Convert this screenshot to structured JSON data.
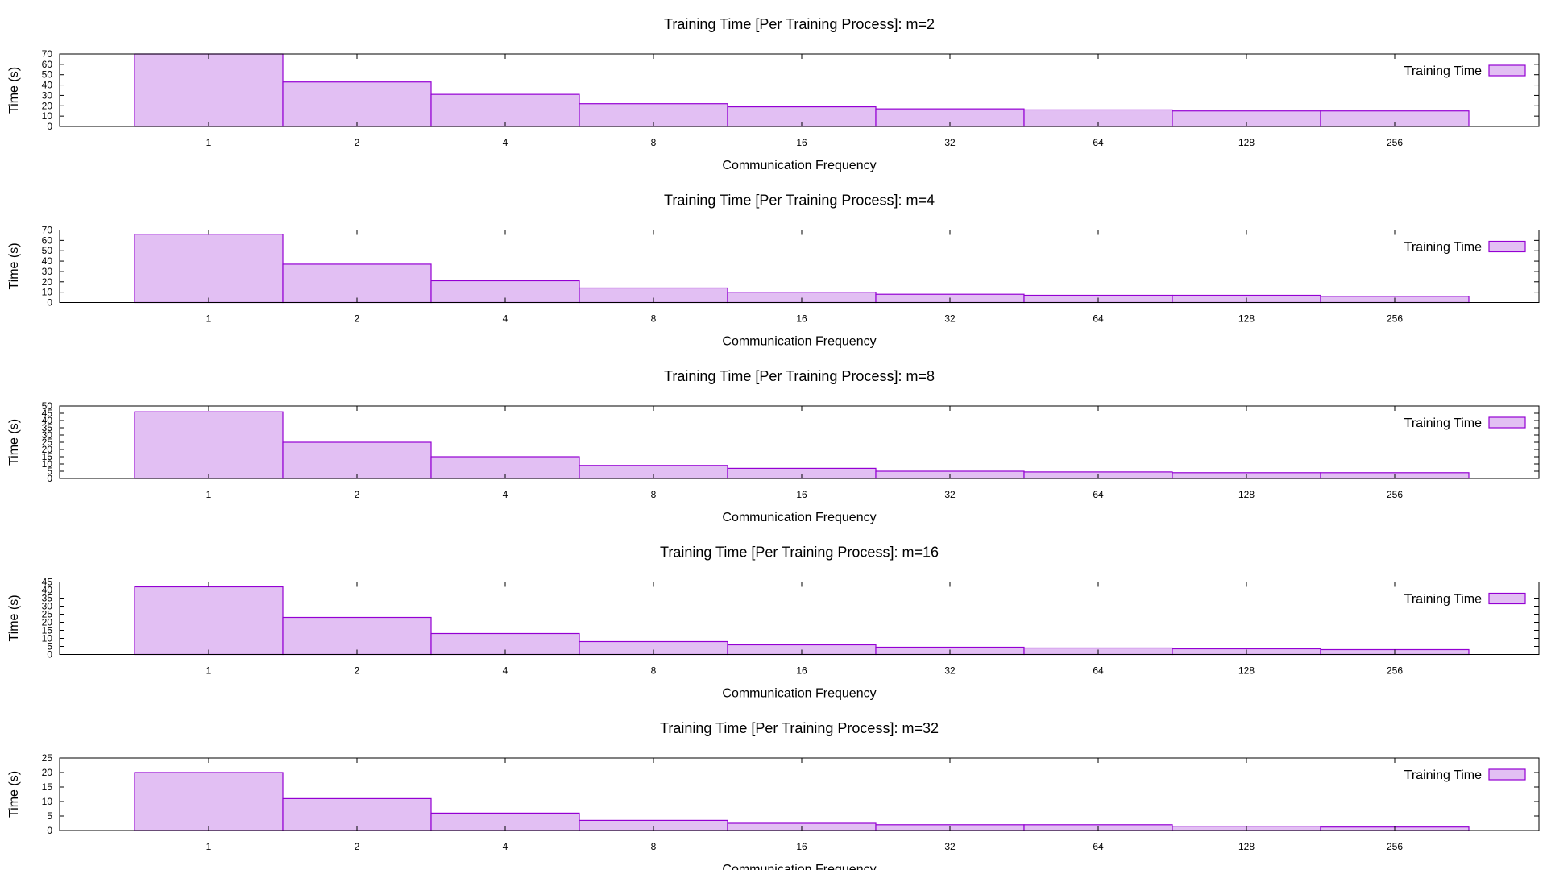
{
  "colors": {
    "bar_fill": "#e2bff3",
    "bar_stroke": "#9400d3",
    "axis": "#000000",
    "background": "#ffffff"
  },
  "chart_data": [
    {
      "type": "bar",
      "title": "Training Time [Per Training Process]: m=2",
      "xlabel": "Communication Frequency",
      "ylabel": "Time (s)",
      "categories": [
        "1",
        "2",
        "4",
        "8",
        "16",
        "32",
        "64",
        "128",
        "256"
      ],
      "series": [
        {
          "name": "Training Time",
          "values": [
            70,
            43,
            31,
            22,
            19,
            17,
            16,
            15,
            15
          ]
        }
      ],
      "ylim": [
        0,
        70
      ],
      "yticks": [
        "0",
        "10",
        "20",
        "30",
        "40",
        "50",
        "60",
        "70"
      ],
      "legend": "top-right",
      "grid": false
    },
    {
      "type": "bar",
      "title": "Training Time [Per Training Process]: m=4",
      "xlabel": "Communication Frequency",
      "ylabel": "Time (s)",
      "categories": [
        "1",
        "2",
        "4",
        "8",
        "16",
        "32",
        "64",
        "128",
        "256"
      ],
      "series": [
        {
          "name": "Training Time",
          "values": [
            66,
            37,
            21,
            14,
            10,
            8,
            7,
            7,
            6
          ]
        }
      ],
      "ylim": [
        0,
        70
      ],
      "yticks": [
        "0",
        "10",
        "20",
        "30",
        "40",
        "50",
        "60",
        "70"
      ],
      "legend": "top-right",
      "grid": false
    },
    {
      "type": "bar",
      "title": "Training Time [Per Training Process]: m=8",
      "xlabel": "Communication Frequency",
      "ylabel": "Time (s)",
      "categories": [
        "1",
        "2",
        "4",
        "8",
        "16",
        "32",
        "64",
        "128",
        "256"
      ],
      "series": [
        {
          "name": "Training Time",
          "values": [
            46,
            25,
            15,
            9,
            7,
            5,
            4.5,
            4,
            4
          ]
        }
      ],
      "ylim": [
        0,
        50
      ],
      "yticks": [
        "0",
        "5",
        "10",
        "15",
        "20",
        "25",
        "30",
        "35",
        "40",
        "45",
        "50"
      ],
      "legend": "top-right",
      "grid": false
    },
    {
      "type": "bar",
      "title": "Training Time [Per Training Process]: m=16",
      "xlabel": "Communication Frequency",
      "ylabel": "Time (s)",
      "categories": [
        "1",
        "2",
        "4",
        "8",
        "16",
        "32",
        "64",
        "128",
        "256"
      ],
      "series": [
        {
          "name": "Training Time",
          "values": [
            42,
            23,
            13,
            8,
            6,
            4.5,
            4,
            3.5,
            3
          ]
        }
      ],
      "ylim": [
        0,
        45
      ],
      "yticks": [
        "0",
        "5",
        "10",
        "15",
        "20",
        "25",
        "30",
        "35",
        "40",
        "45"
      ],
      "legend": "top-right",
      "grid": false
    },
    {
      "type": "bar",
      "title": "Training Time [Per Training Process]: m=32",
      "xlabel": "Communication Frequency",
      "ylabel": "Time (s)",
      "categories": [
        "1",
        "2",
        "4",
        "8",
        "16",
        "32",
        "64",
        "128",
        "256"
      ],
      "series": [
        {
          "name": "Training Time",
          "values": [
            20,
            11,
            6,
            3.5,
            2.5,
            2,
            2,
            1.5,
            1.2
          ]
        }
      ],
      "ylim": [
        0,
        25
      ],
      "yticks": [
        "0",
        "5",
        "10",
        "15",
        "20",
        "25"
      ],
      "legend": "top-right",
      "grid": false
    }
  ]
}
